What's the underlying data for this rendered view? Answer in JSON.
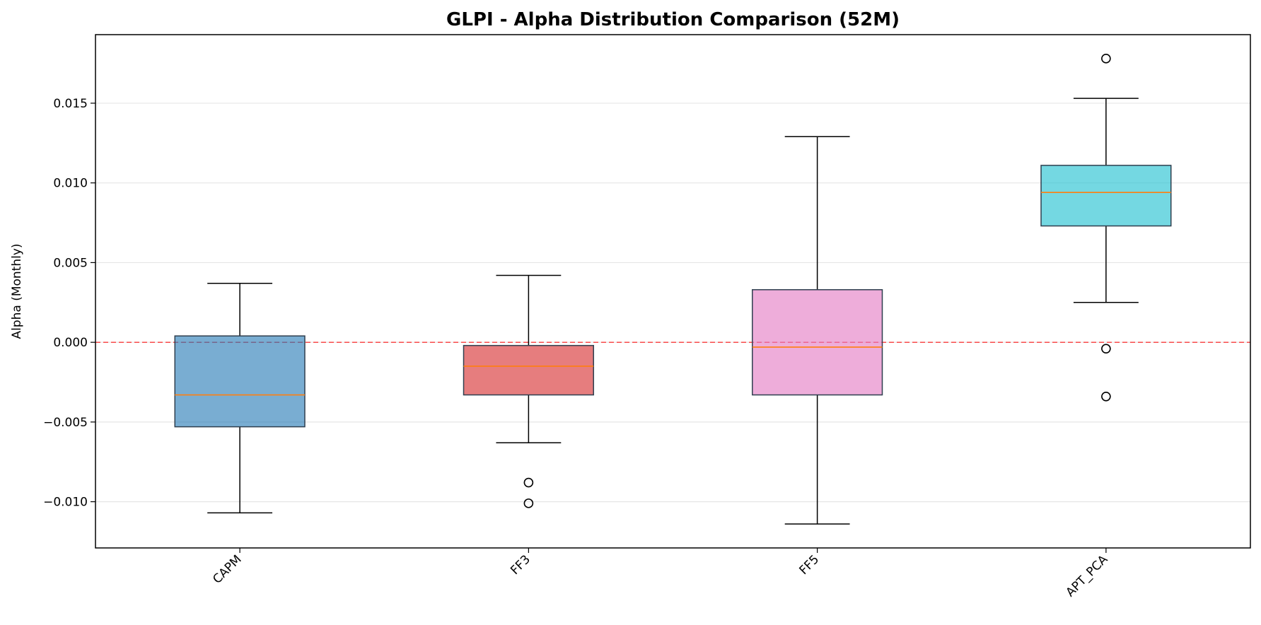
{
  "chart_data": {
    "type": "box",
    "title": "GLPI - Alpha Distribution Comparison (52M)",
    "xlabel": "",
    "ylabel": "Alpha (Monthly)",
    "ylim": [
      -0.0129,
      0.0193
    ],
    "yticks": [
      -0.01,
      -0.005,
      0.0,
      0.005,
      0.01,
      0.015
    ],
    "ytick_labels": [
      "−0.010",
      "−0.005",
      "0.000",
      "0.005",
      "0.010",
      "0.015"
    ],
    "grid": "horizontal",
    "reference_line": {
      "y": 0.0,
      "color": "#ff0000",
      "style": "dashed"
    },
    "median_color": "#ff7f0e",
    "categories": [
      "CAPM",
      "FF3",
      "FF5",
      "APT_PCA"
    ],
    "boxes": [
      {
        "label": "CAPM",
        "whisker_low": -0.0107,
        "q1": -0.0053,
        "median": -0.0033,
        "q3": 0.0004,
        "whisker_high": 0.0037,
        "outliers": [],
        "color": "#1f77b4"
      },
      {
        "label": "FF3",
        "whisker_low": -0.0063,
        "q1": -0.0033,
        "median": -0.0015,
        "q3": -0.0002,
        "whisker_high": 0.0042,
        "outliers": [
          -0.0088,
          -0.0101
        ],
        "color": "#d62728"
      },
      {
        "label": "FF5",
        "whisker_low": -0.0114,
        "q1": -0.0033,
        "median": -0.0003,
        "q3": 0.0033,
        "whisker_high": 0.0129,
        "outliers": [],
        "color": "#e377c2"
      },
      {
        "label": "APT_PCA",
        "whisker_low": 0.0025,
        "q1": 0.0073,
        "median": 0.0094,
        "q3": 0.0111,
        "whisker_high": 0.0153,
        "outliers": [
          0.0178,
          -0.0004,
          -0.0034
        ],
        "color": "#17becf"
      }
    ]
  }
}
